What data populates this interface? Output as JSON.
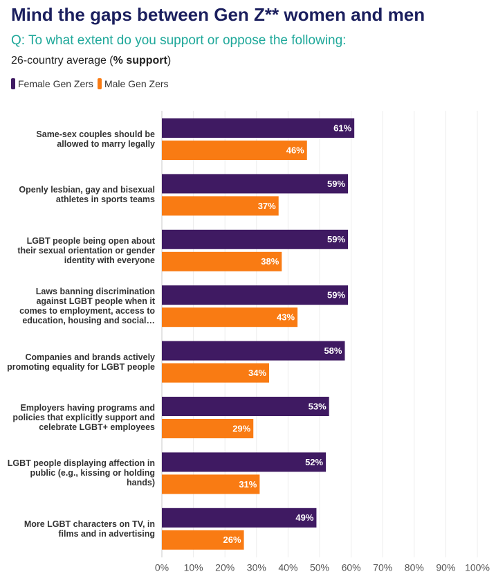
{
  "chart_data": {
    "type": "hbar",
    "title": "Mind the gaps between Gen Z** women and men",
    "subtitle": "Q: To what extent do you support or oppose the following:",
    "note": [
      "26-country average (",
      "% support",
      ")"
    ],
    "categories": [
      "Same-sex couples should be allowed to marry legally",
      "Openly lesbian, gay and bisexual athletes in sports teams",
      "LGBT people being open about their sexual orientation or gender identity with everyone",
      "Laws banning discrimination against LGBT people when it comes to employment, access to education, housing and social…",
      "Companies and brands actively promoting equality for LGBT people",
      "Employers having programs and policies that explicitly support and celebrate LGBT+ employees",
      "LGBT people displaying affection in public (e.g., kissing or holding hands)",
      "More LGBT characters on TV, in films and in advertising"
    ],
    "series": [
      {
        "name": "Female Gen Zers",
        "color": "#3f1a62",
        "values": [
          61,
          59,
          59,
          59,
          58,
          53,
          52,
          49
        ],
        "value_labels": [
          "61%",
          "59%",
          "59%",
          "59%",
          "58%",
          "53%",
          "52%",
          "49%"
        ]
      },
      {
        "name": "Male Gen Zers",
        "color": "#f97b13",
        "values": [
          46,
          37,
          38,
          43,
          34,
          29,
          31,
          26
        ],
        "value_labels": [
          "46%",
          "37%",
          "38%",
          "43%",
          "34%",
          "29%",
          "31%",
          "26%"
        ]
      }
    ],
    "xlim": [
      0,
      100
    ],
    "xticks": [
      {
        "value": 0,
        "label": "0%"
      },
      {
        "value": 10,
        "label": "10%"
      },
      {
        "value": 20,
        "label": "20%"
      },
      {
        "value": 30,
        "label": "30%"
      },
      {
        "value": 40,
        "label": "40%"
      },
      {
        "value": 50,
        "label": "50%"
      },
      {
        "value": 60,
        "label": "60%"
      },
      {
        "value": 70,
        "label": "70%"
      },
      {
        "value": 80,
        "label": "80%"
      },
      {
        "value": 90,
        "label": "90%"
      },
      {
        "value": 100,
        "label": "100%"
      }
    ],
    "grid": true
  }
}
